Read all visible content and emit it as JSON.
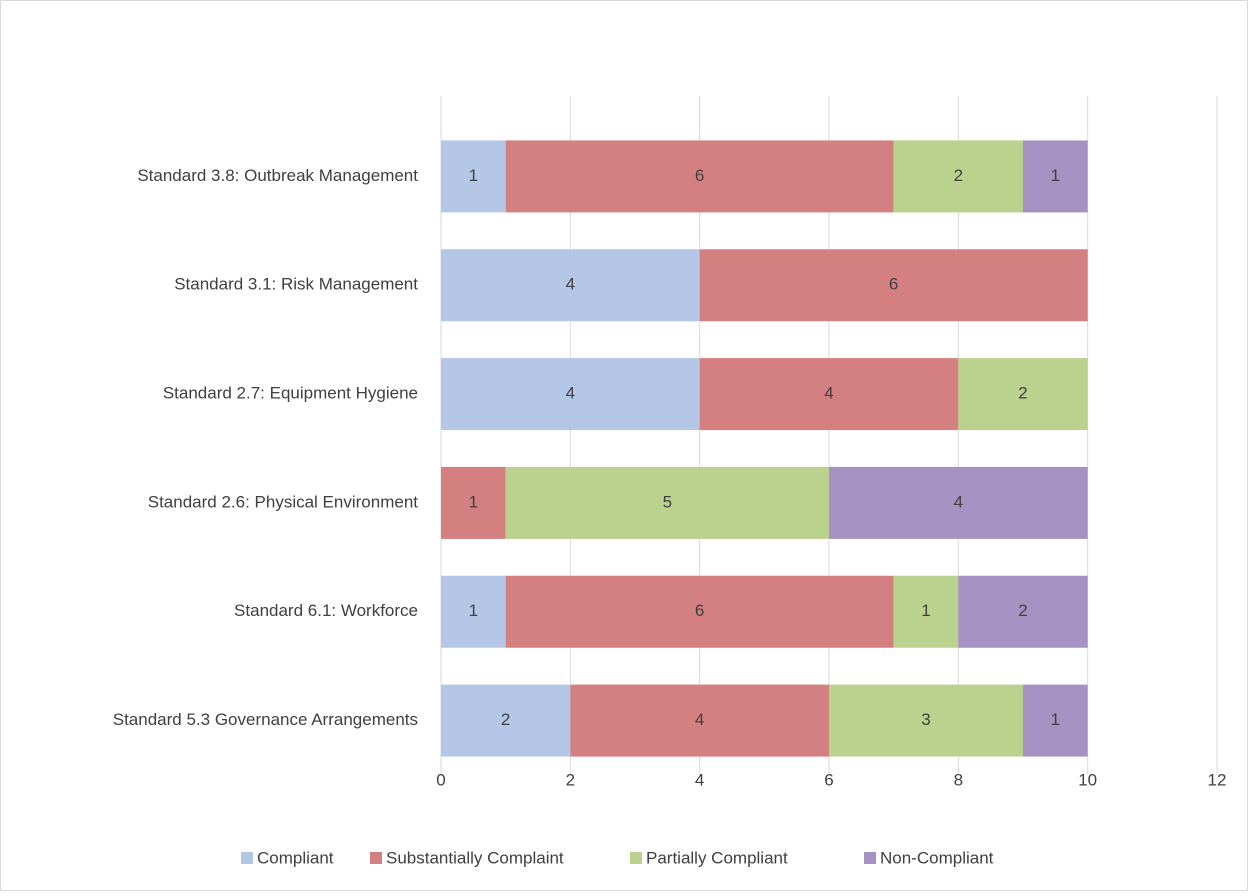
{
  "chart_data": {
    "type": "stacked-bar-horizontal",
    "categories": [
      "Standard 3.8: Outbreak Management",
      "Standard 3.1: Risk Management",
      "Standard 2.7: Equipment Hygiene",
      "Standard 2.6: Physical Environment",
      "Standard 6.1: Workforce",
      "Standard 5.3 Governance Arrangements"
    ],
    "series": [
      {
        "name": "Compliant",
        "color": "#b4c7e7",
        "values": [
          1,
          4,
          4,
          null,
          1,
          2
        ]
      },
      {
        "name": "Substantially Complaint",
        "color": "#d48080",
        "values": [
          6,
          6,
          4,
          1,
          6,
          4
        ]
      },
      {
        "name": "Partially Compliant",
        "color": "#bbd18e",
        "values": [
          2,
          null,
          2,
          5,
          1,
          3
        ]
      },
      {
        "name": "Non-Compliant",
        "color": "#a692c2",
        "values": [
          1,
          null,
          null,
          4,
          2,
          1
        ]
      }
    ],
    "xlim": [
      0,
      12
    ],
    "xticks": [
      0,
      2,
      4,
      6,
      8,
      10,
      12
    ],
    "grid": true,
    "legend": "bottom"
  }
}
